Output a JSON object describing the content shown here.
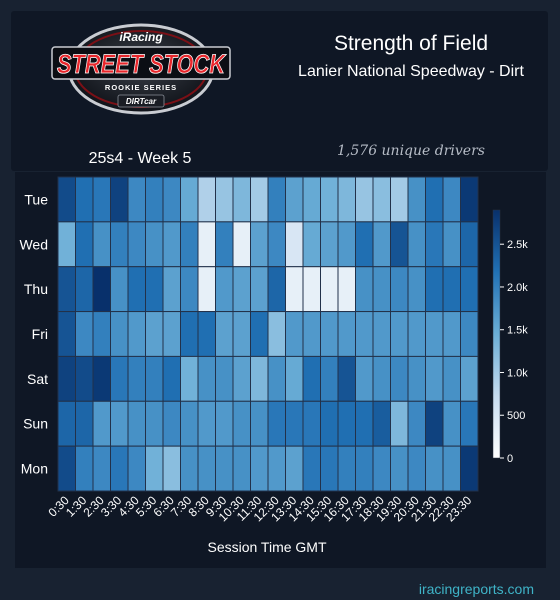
{
  "header": {
    "title": "Strength of Field",
    "subtitle": "Lanier National Speedway - Dirt",
    "drivers": "1,576 unique drivers",
    "week": "25s4 - Week 5"
  },
  "logo": {
    "brand": "iRacing",
    "series": "STREET STOCK",
    "tagline": "ROOKIE SERIES",
    "sponsor": "DIRTcar"
  },
  "footer": {
    "site": "iracingreports.com"
  },
  "colors": {
    "background": "#182231",
    "card": "#0f1725",
    "accent": "#3fb4c8",
    "scale_low": "#ffffff",
    "scale_high": "#08306b"
  },
  "chart_data": {
    "type": "heatmap",
    "title": "",
    "xlabel": "Session Time GMT",
    "ylabel": "",
    "x": [
      "0:30",
      "1:30",
      "2:30",
      "3:30",
      "4:30",
      "5:30",
      "6:30",
      "7:30",
      "8:30",
      "9:30",
      "10:30",
      "11:30",
      "12:30",
      "13:30",
      "14:30",
      "15:30",
      "16:30",
      "17:30",
      "18:30",
      "19:30",
      "20:30",
      "21:30",
      "22:30",
      "23:30"
    ],
    "y": [
      "Tue",
      "Wed",
      "Thu",
      "Fri",
      "Sat",
      "Sun",
      "Mon"
    ],
    "values": [
      [
        2600,
        2200,
        2100,
        2700,
        1900,
        2000,
        1900,
        1500,
        900,
        1100,
        1300,
        1000,
        2000,
        1600,
        1500,
        1400,
        1300,
        1100,
        1200,
        1000,
        1800,
        2200,
        1900,
        2800
      ],
      [
        1400,
        2200,
        1800,
        2000,
        1900,
        1800,
        1700,
        2000,
        300,
        2000,
        300,
        1600,
        1900,
        500,
        1500,
        1600,
        1700,
        2200,
        1700,
        2500,
        1800,
        2100,
        1800,
        2300
      ],
      [
        2500,
        2300,
        2900,
        1800,
        2200,
        2200,
        1600,
        1900,
        300,
        1700,
        1600,
        1600,
        2300,
        300,
        300,
        300,
        300,
        1800,
        1800,
        1900,
        1800,
        2200,
        2200,
        2200
      ],
      [
        2500,
        1900,
        2000,
        1800,
        1700,
        1600,
        1600,
        2200,
        2200,
        1600,
        1600,
        2200,
        1200,
        1700,
        1700,
        1700,
        1700,
        1700,
        1700,
        1700,
        1700,
        1700,
        1700,
        1900
      ],
      [
        2700,
        2600,
        2800,
        2100,
        2000,
        2000,
        2200,
        1400,
        1800,
        1800,
        1600,
        1300,
        1800,
        1500,
        2200,
        2000,
        2500,
        1700,
        1800,
        1900,
        1800,
        1700,
        1800,
        1600
      ],
      [
        2300,
        2300,
        1700,
        1700,
        1800,
        1800,
        1900,
        1800,
        1700,
        1700,
        1800,
        1800,
        2100,
        2100,
        2100,
        2200,
        2200,
        2200,
        2400,
        1300,
        1900,
        2700,
        1800,
        2100
      ],
      [
        2600,
        2000,
        1900,
        2100,
        1900,
        1400,
        1200,
        1800,
        1800,
        1800,
        1800,
        1700,
        1700,
        1600,
        2100,
        2100,
        2000,
        2000,
        1900,
        1800,
        1900,
        1800,
        1800,
        2800
      ]
    ],
    "zrange": [
      0,
      2900
    ],
    "colorbar_ticks": [
      0,
      500,
      1000,
      1500,
      2000,
      2500
    ],
    "colorbar_tick_labels": [
      "0",
      "500",
      "1.0k",
      "1.5k",
      "2.0k",
      "2.5k"
    ],
    "legend": "right"
  }
}
